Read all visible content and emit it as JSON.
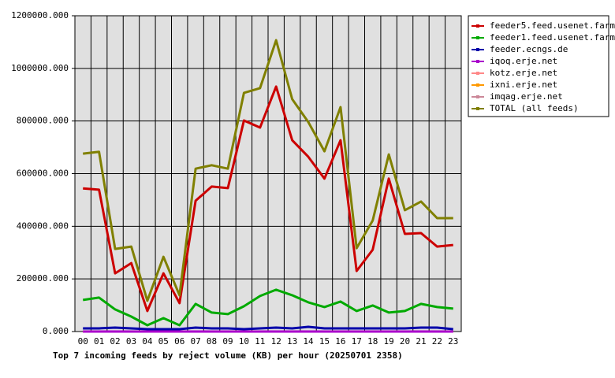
{
  "chart_data": {
    "type": "line",
    "title": "Top 7 incoming feeds by reject volume (KB) per hour (20250701 2358)",
    "categories": [
      "00",
      "01",
      "02",
      "03",
      "04",
      "05",
      "06",
      "07",
      "08",
      "09",
      "10",
      "11",
      "12",
      "13",
      "14",
      "15",
      "16",
      "17",
      "18",
      "19",
      "20",
      "21",
      "22",
      "23"
    ],
    "ylim": [
      0,
      1200000
    ],
    "yticks": [
      {
        "value": 0,
        "label": "0.000"
      },
      {
        "value": 200000,
        "label": "200000.000"
      },
      {
        "value": 400000,
        "label": "400000.000"
      },
      {
        "value": 600000,
        "label": "600000.000"
      },
      {
        "value": 800000,
        "label": "800000.000"
      },
      {
        "value": 1000000,
        "label": "1000000.000"
      },
      {
        "value": 1200000,
        "label": "1200000.000"
      }
    ],
    "grid": true,
    "legend": "right",
    "series": [
      {
        "name": "feeder5.feed.usenet.farm",
        "color": "#cc0000",
        "values": [
          544000,
          539000,
          221000,
          260000,
          78000,
          221000,
          108000,
          497000,
          551000,
          545000,
          802000,
          775000,
          931000,
          727000,
          664000,
          581000,
          727000,
          230000,
          311000,
          581000,
          371000,
          374000,
          323000,
          329000
        ]
      },
      {
        "name": "feeder1.feed.usenet.farm",
        "color": "#00aa00",
        "values": [
          120000,
          129000,
          84000,
          57000,
          24000,
          51000,
          24000,
          105000,
          72000,
          66000,
          96000,
          135000,
          159000,
          138000,
          111000,
          93000,
          114000,
          78000,
          99000,
          72000,
          78000,
          105000,
          93000,
          87000
        ]
      },
      {
        "name": "feeder.ecngs.de",
        "color": "#0000aa",
        "values": [
          12000,
          12000,
          15000,
          12000,
          9000,
          9000,
          9000,
          15000,
          12000,
          12000,
          9000,
          12000,
          15000,
          12000,
          18000,
          12000,
          12000,
          12000,
          12000,
          12000,
          12000,
          15000,
          15000,
          9000
        ]
      },
      {
        "name": "iqoq.erje.net",
        "color": "#aa00cc",
        "values": [
          0,
          0,
          0,
          0,
          0,
          0,
          0,
          0,
          0,
          0,
          0,
          0,
          0,
          0,
          0,
          0,
          0,
          0,
          0,
          0,
          0,
          0,
          0,
          0
        ]
      },
      {
        "name": "kotz.erje.net",
        "color": "#ff8888",
        "values": [
          0,
          0,
          0,
          0,
          0,
          0,
          0,
          0,
          0,
          0,
          0,
          0,
          0,
          0,
          0,
          0,
          0,
          0,
          0,
          0,
          0,
          0,
          0,
          0
        ]
      },
      {
        "name": "ixni.erje.net",
        "color": "#ff9900",
        "values": [
          0,
          0,
          0,
          0,
          0,
          0,
          0,
          0,
          0,
          0,
          0,
          0,
          0,
          0,
          0,
          0,
          0,
          0,
          0,
          0,
          0,
          0,
          0,
          0
        ]
      },
      {
        "name": "imqag.erje.net",
        "color": "#cc8899",
        "values": [
          0,
          0,
          0,
          0,
          0,
          0,
          0,
          0,
          0,
          0,
          0,
          0,
          0,
          0,
          0,
          0,
          0,
          0,
          0,
          0,
          0,
          0,
          0,
          0
        ]
      },
      {
        "name": "TOTAL (all feeds)",
        "color": "#808000",
        "values": [
          676000,
          683000,
          314000,
          323000,
          117000,
          284000,
          138000,
          619000,
          632000,
          619000,
          907000,
          925000,
          1107000,
          883000,
          796000,
          685000,
          853000,
          317000,
          422000,
          673000,
          461000,
          494000,
          431000,
          431000
        ]
      }
    ]
  }
}
